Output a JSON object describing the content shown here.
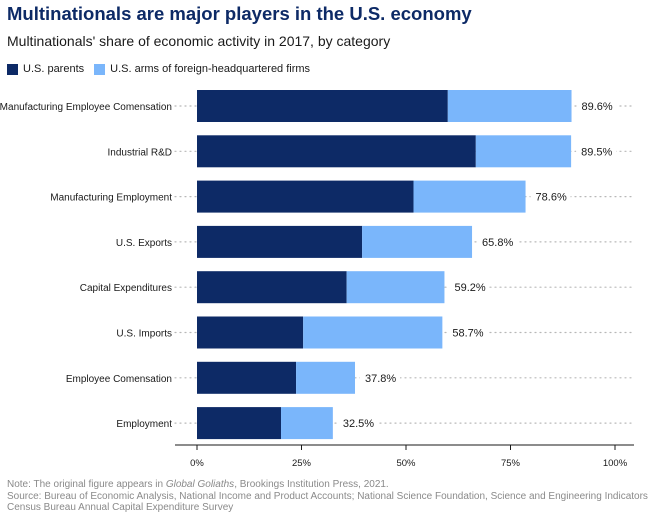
{
  "title": "Multinationals are major players in the U.S. economy",
  "subtitle": "Multinationals' share of economic activity in 2017, by category",
  "chart_data": {
    "type": "bar",
    "orientation": "horizontal",
    "stacked": true,
    "categories": [
      "Manufacturing Employee Comensation",
      "Industrial R&D",
      "Manufacturing Employment",
      "U.S. Exports",
      "Capital Expenditures",
      "U.S. Imports",
      "Employee Comensation",
      "Employment"
    ],
    "series": [
      {
        "name": "U.S. parents",
        "color": "#0d2a66",
        "values": [
          60.0,
          66.7,
          51.8,
          39.5,
          35.8,
          25.4,
          23.7,
          20.1
        ]
      },
      {
        "name": "U.S. arms of foreign-headquartered firms",
        "color": "#7ab6fb",
        "values": [
          29.6,
          22.8,
          26.8,
          26.3,
          23.4,
          33.3,
          14.1,
          12.4
        ]
      }
    ],
    "totals": [
      89.6,
      89.5,
      78.6,
      65.8,
      59.2,
      58.7,
      37.8,
      32.5
    ],
    "total_labels": [
      "89.6%",
      "89.5%",
      "78.6%",
      "65.8%",
      "59.2%",
      "58.7%",
      "37.8%",
      "32.5%"
    ],
    "xlim": [
      0,
      100
    ],
    "xticks": [
      0,
      25,
      50,
      75,
      100
    ],
    "xtick_labels": [
      "0%",
      "25%",
      "50%",
      "75%",
      "100%"
    ],
    "legend_position": "top-left",
    "grid": "dotted row guides"
  },
  "notes": {
    "line1_prefix": "Note: The original figure appears in ",
    "line1_italic": "Global Goliaths",
    "line1_suffix": ", Brookings Institution Press, 2021.",
    "line2": "Source: Bureau of Economic Analysis, National Income and Product Accounts; National Science Foundation, Science and Engineering Indicators;",
    "line3": "Census Bureau Annual Capital Expenditure Survey"
  }
}
